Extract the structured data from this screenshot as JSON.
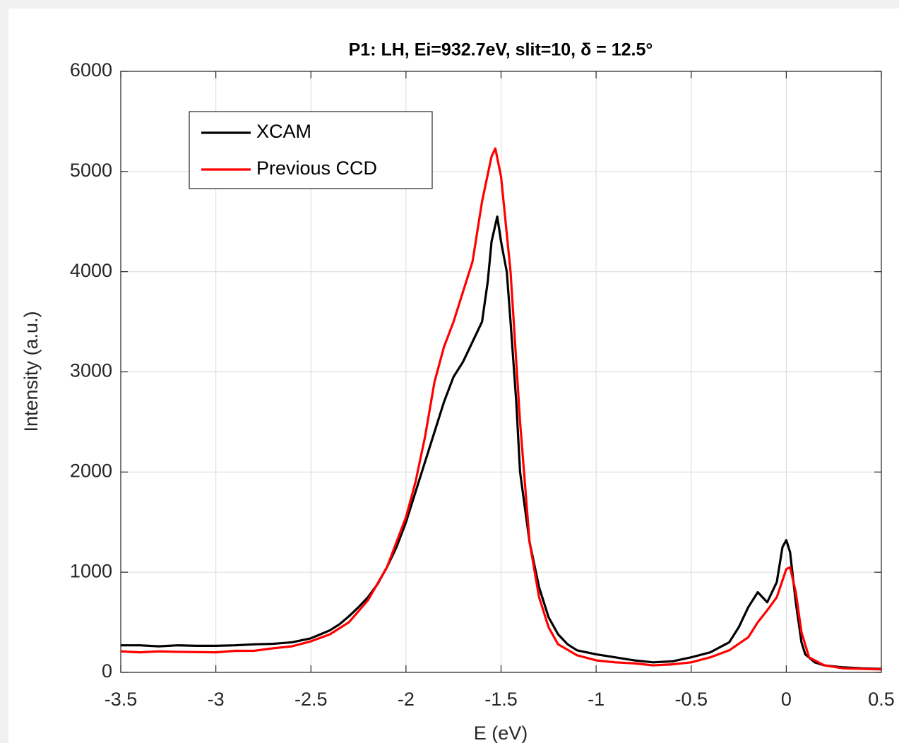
{
  "chart_data": {
    "type": "line",
    "title": "P1: LH, Ei=932.7eV, slit=10,  δ = 12.5°",
    "xlabel": "E (eV)",
    "ylabel": "Intensity (a.u.)",
    "xlim": [
      -3.5,
      0.5
    ],
    "ylim": [
      0,
      6000
    ],
    "xticks": [
      -3.5,
      -3,
      -2.5,
      -2,
      -1.5,
      -1,
      -0.5,
      0,
      0.5
    ],
    "yticks": [
      0,
      1000,
      2000,
      3000,
      4000,
      5000,
      6000
    ],
    "grid": true,
    "legend": "upper-left",
    "series": [
      {
        "name": "XCAM",
        "color": "#000000",
        "x": [
          -3.5,
          -3.4,
          -3.3,
          -3.2,
          -3.1,
          -3.0,
          -2.9,
          -2.8,
          -2.7,
          -2.6,
          -2.5,
          -2.45,
          -2.4,
          -2.35,
          -2.3,
          -2.25,
          -2.2,
          -2.15,
          -2.1,
          -2.05,
          -2.0,
          -1.95,
          -1.9,
          -1.85,
          -1.8,
          -1.75,
          -1.7,
          -1.65,
          -1.6,
          -1.57,
          -1.55,
          -1.52,
          -1.5,
          -1.47,
          -1.45,
          -1.42,
          -1.4,
          -1.35,
          -1.3,
          -1.25,
          -1.2,
          -1.15,
          -1.1,
          -1.0,
          -0.9,
          -0.8,
          -0.7,
          -0.6,
          -0.5,
          -0.4,
          -0.3,
          -0.25,
          -0.2,
          -0.15,
          -0.1,
          -0.05,
          -0.02,
          0.0,
          0.02,
          0.05,
          0.08,
          0.1,
          0.15,
          0.2,
          0.3,
          0.4,
          0.5
        ],
        "values": [
          270,
          270,
          260,
          270,
          265,
          265,
          270,
          280,
          285,
          300,
          340,
          380,
          420,
          480,
          560,
          650,
          750,
          880,
          1050,
          1250,
          1500,
          1800,
          2100,
          2400,
          2700,
          2950,
          3100,
          3300,
          3500,
          3900,
          4300,
          4550,
          4300,
          4000,
          3500,
          2700,
          2000,
          1300,
          850,
          550,
          380,
          280,
          220,
          180,
          150,
          120,
          100,
          110,
          150,
          200,
          300,
          450,
          650,
          800,
          700,
          900,
          1250,
          1320,
          1200,
          700,
          300,
          180,
          100,
          70,
          50,
          40,
          35
        ]
      },
      {
        "name": "Previous CCD",
        "color": "#ff0000",
        "x": [
          -3.5,
          -3.4,
          -3.3,
          -3.2,
          -3.0,
          -2.9,
          -2.8,
          -2.7,
          -2.6,
          -2.5,
          -2.4,
          -2.3,
          -2.2,
          -2.1,
          -2.0,
          -1.95,
          -1.9,
          -1.85,
          -1.8,
          -1.75,
          -1.7,
          -1.65,
          -1.6,
          -1.55,
          -1.53,
          -1.5,
          -1.45,
          -1.4,
          -1.35,
          -1.3,
          -1.25,
          -1.2,
          -1.1,
          -1.0,
          -0.9,
          -0.8,
          -0.7,
          -0.6,
          -0.5,
          -0.4,
          -0.3,
          -0.2,
          -0.15,
          -0.1,
          -0.05,
          0.0,
          0.02,
          0.05,
          0.08,
          0.12,
          0.2,
          0.3,
          0.5
        ],
        "values": [
          210,
          200,
          210,
          205,
          200,
          215,
          215,
          240,
          260,
          310,
          380,
          500,
          720,
          1050,
          1550,
          1900,
          2350,
          2900,
          3250,
          3500,
          3800,
          4100,
          4700,
          5150,
          5230,
          4950,
          4000,
          2500,
          1300,
          750,
          450,
          280,
          170,
          120,
          100,
          90,
          70,
          80,
          100,
          150,
          220,
          350,
          500,
          620,
          750,
          1030,
          1050,
          800,
          400,
          150,
          70,
          40,
          30
        ]
      }
    ]
  }
}
